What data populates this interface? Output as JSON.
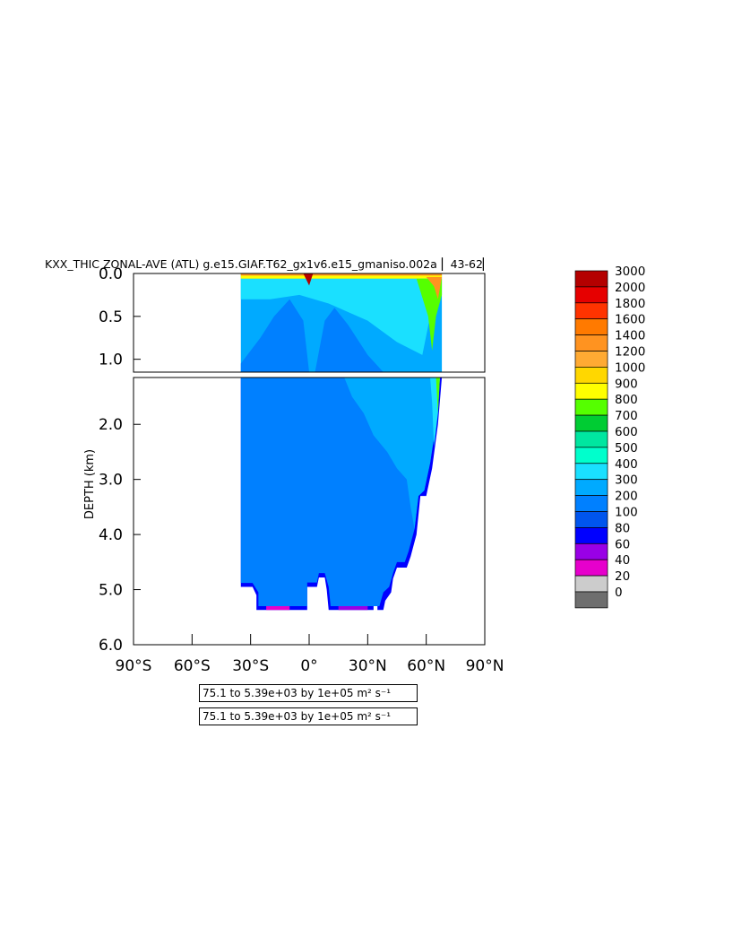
{
  "chart_data": {
    "type": "heatmap",
    "title": "KXX_THIC ZONAL-AVE (ATL) g.e15.GIAF.T62_gx1v6.e15_gmaniso.002a  ▏43-62▏",
    "ylabel": "DEPTH (km)",
    "x_ticks": [
      "90°S",
      "60°S",
      "30°S",
      "0°",
      "30°N",
      "60°N",
      "90°N"
    ],
    "x_values": [
      -90,
      -60,
      -30,
      0,
      30,
      60,
      90
    ],
    "xlim": [
      -90,
      90
    ],
    "upper_panel": {
      "ylim": [
        0.0,
        1.15
      ],
      "y_ticks": [
        "0.0",
        "0.5",
        "1.0"
      ],
      "y_values": [
        0.0,
        0.5,
        1.0
      ]
    },
    "lower_panel": {
      "ylim": [
        1.15,
        6.0
      ],
      "y_ticks": [
        "2.0",
        "3.0",
        "4.0",
        "5.0",
        "6.0"
      ],
      "y_values": [
        2.0,
        3.0,
        4.0,
        5.0,
        6.0
      ]
    },
    "levels": [
      "0",
      "20",
      "40",
      "60",
      "80",
      "100",
      "200",
      "300",
      "400",
      "500",
      "600",
      "700",
      "800",
      "900",
      "1000",
      "1200",
      "1400",
      "1600",
      "1800",
      "2000",
      "3000"
    ],
    "colors": [
      "#6e6e6e",
      "#cccccc",
      "#e600cc",
      "#9900e6",
      "#0000ff",
      "#0055ee",
      "#0080ff",
      "#00aaff",
      "#1ae0ff",
      "#00ffcc",
      "#00e6a0",
      "#00cc33",
      "#55ff00",
      "#ffff00",
      "#ffd700",
      "#ffaa33",
      "#ff9320",
      "#ff7a00",
      "#ff3300",
      "#e60000",
      "#b40000"
    ],
    "range_label": "75.1  to 5.39e+03 by 1e+05 m² s⁻¹",
    "range_label_2": "75.1  to 5.39e+03 by 1e+05 m² s⁻¹"
  }
}
